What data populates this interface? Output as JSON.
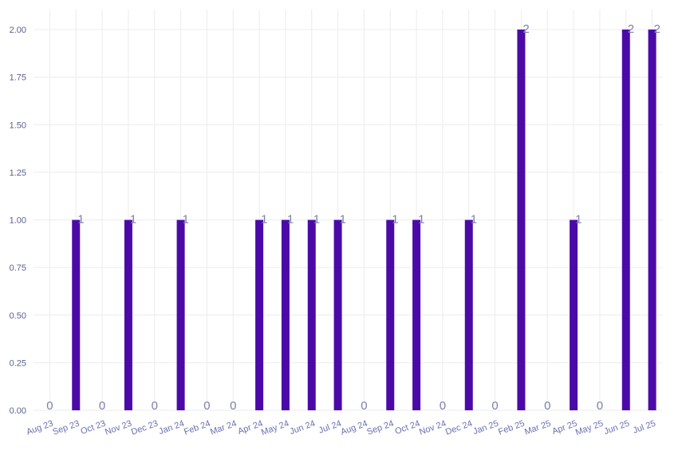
{
  "chart_data": {
    "type": "bar",
    "categories": [
      "Aug 23",
      "Sep 23",
      "Oct 23",
      "Nov 23",
      "Dec 23",
      "Jan 24",
      "Feb 24",
      "Mar 24",
      "Apr 24",
      "May 24",
      "Jun 24",
      "Jul 24",
      "Aug 24",
      "Sep 24",
      "Oct 24",
      "Nov 24",
      "Dec 24",
      "Jan 25",
      "Feb 25",
      "Mar 25",
      "Apr 25",
      "May 25",
      "Jun 25",
      "Jul 25"
    ],
    "values": [
      0,
      1,
      0,
      1,
      0,
      1,
      0,
      0,
      1,
      1,
      1,
      1,
      0,
      1,
      1,
      0,
      1,
      0,
      2,
      0,
      1,
      0,
      2,
      2
    ],
    "data_labels": [
      "0",
      "1",
      "0",
      "1",
      "0",
      "1",
      "0",
      "0",
      "1",
      "1",
      "1",
      "1",
      "0",
      "1",
      "1",
      "0",
      "1",
      "0",
      "2",
      "0",
      "1",
      "0",
      "2",
      "2"
    ],
    "title": "",
    "xlabel": "",
    "ylabel": "",
    "ylim": [
      0,
      2
    ],
    "y_ticks": [
      0,
      0.25,
      0.5,
      0.75,
      1,
      1.25,
      1.5,
      1.75,
      2
    ],
    "y_tick_labels": [
      "0.00",
      "0.25",
      "0.50",
      "0.75",
      "1.00",
      "1.25",
      "1.50",
      "1.75",
      "2.00"
    ],
    "grid": true,
    "legend": "none",
    "bar_color": "#4b0aa8",
    "label_color": "#7b7fa8",
    "tick_label_color": "#6a6fb0",
    "grid_color": "#ececec"
  }
}
